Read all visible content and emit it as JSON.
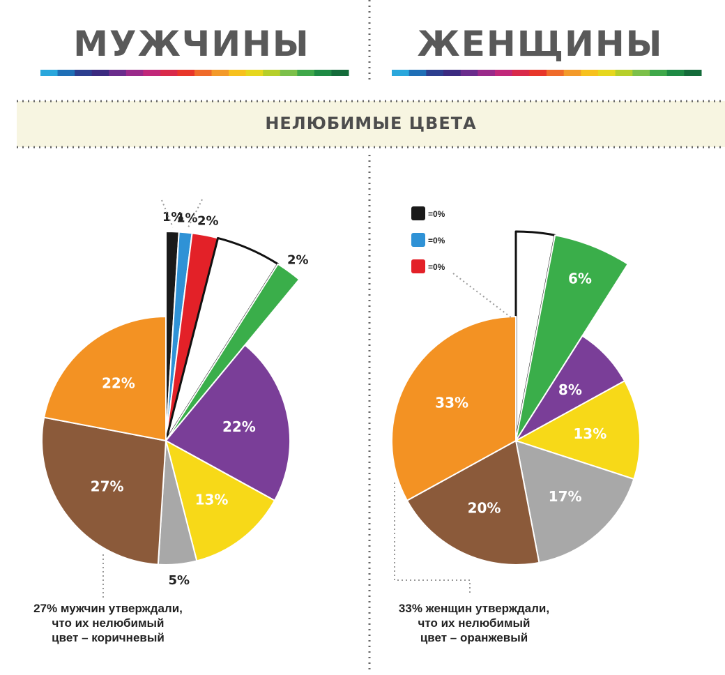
{
  "header": {
    "men_title": "МУЖЧИНЫ",
    "women_title": "ЖЕНЩИНЫ",
    "section_title": "НЕЛЮБИМЫЕ ЦВЕТА"
  },
  "stripe_colors": [
    "#2aa7dc",
    "#1f6fb6",
    "#2c3e8f",
    "#3b2a80",
    "#6a2c8c",
    "#9a2a8a",
    "#c1287a",
    "#d92a4a",
    "#e8362a",
    "#ef6b2a",
    "#f39a2a",
    "#f7c11e",
    "#e6d71e",
    "#b6cf2a",
    "#7cc04a",
    "#3fa84a",
    "#1e8a44",
    "#146b3a"
  ],
  "chart_data": [
    {
      "type": "pie",
      "title": "МУЖЧИНЫ",
      "slices": [
        {
          "color_name": "black",
          "color": "#1a1a1a",
          "value": 1,
          "label": "1%",
          "exploded": true
        },
        {
          "color_name": "blue",
          "color": "#2f92d6",
          "value": 1,
          "label": "1%",
          "exploded": true
        },
        {
          "color_name": "red",
          "color": "#e32128",
          "value": 2,
          "label": "2%",
          "exploded": true
        },
        {
          "color_name": "white",
          "color": "#ffffff",
          "value": 5,
          "label": "5%",
          "exploded": true
        },
        {
          "color_name": "green",
          "color": "#3aae4a",
          "value": 2,
          "label": "2%",
          "exploded": true
        },
        {
          "color_name": "purple",
          "color": "#7a3e98",
          "value": 22,
          "label": "22%",
          "exploded": false
        },
        {
          "color_name": "yellow",
          "color": "#f7d918",
          "value": 13,
          "label": "13%",
          "exploded": false
        },
        {
          "color_name": "gray",
          "color": "#a8a8a8",
          "value": 5,
          "label": "5%",
          "exploded": false
        },
        {
          "color_name": "brown",
          "color": "#8b5a3a",
          "value": 27,
          "label": "27%",
          "exploded": false
        },
        {
          "color_name": "orange",
          "color": "#f39223",
          "value": 22,
          "label": "22%",
          "exploded": false
        }
      ],
      "caption": "27% мужчин утверждали,\nчто их нелюбимый\nцвет – коричневый"
    },
    {
      "type": "pie",
      "title": "ЖЕНЩИНЫ",
      "slices": [
        {
          "color_name": "white",
          "color": "#ffffff",
          "value": 3,
          "label": "3%",
          "exploded": true
        },
        {
          "color_name": "green",
          "color": "#3aae4a",
          "value": 6,
          "label": "6%",
          "exploded": true
        },
        {
          "color_name": "purple",
          "color": "#7a3e98",
          "value": 8,
          "label": "8%",
          "exploded": false
        },
        {
          "color_name": "yellow",
          "color": "#f7d918",
          "value": 13,
          "label": "13%",
          "exploded": false
        },
        {
          "color_name": "gray",
          "color": "#a8a8a8",
          "value": 17,
          "label": "17%",
          "exploded": false
        },
        {
          "color_name": "brown",
          "color": "#8b5a3a",
          "value": 20,
          "label": "20%",
          "exploded": false
        },
        {
          "color_name": "orange",
          "color": "#f39223",
          "value": 33,
          "label": "33%",
          "exploded": false
        }
      ],
      "legend": [
        {
          "color_name": "black",
          "color": "#1a1a1a",
          "label": "=0%"
        },
        {
          "color_name": "blue",
          "color": "#2f92d6",
          "label": "=0%"
        },
        {
          "color_name": "red",
          "color": "#e32128",
          "label": "=0%"
        }
      ],
      "caption": "33% женщин утверждали,\nчто их нелюбимый\nцвет – оранжевый"
    }
  ]
}
